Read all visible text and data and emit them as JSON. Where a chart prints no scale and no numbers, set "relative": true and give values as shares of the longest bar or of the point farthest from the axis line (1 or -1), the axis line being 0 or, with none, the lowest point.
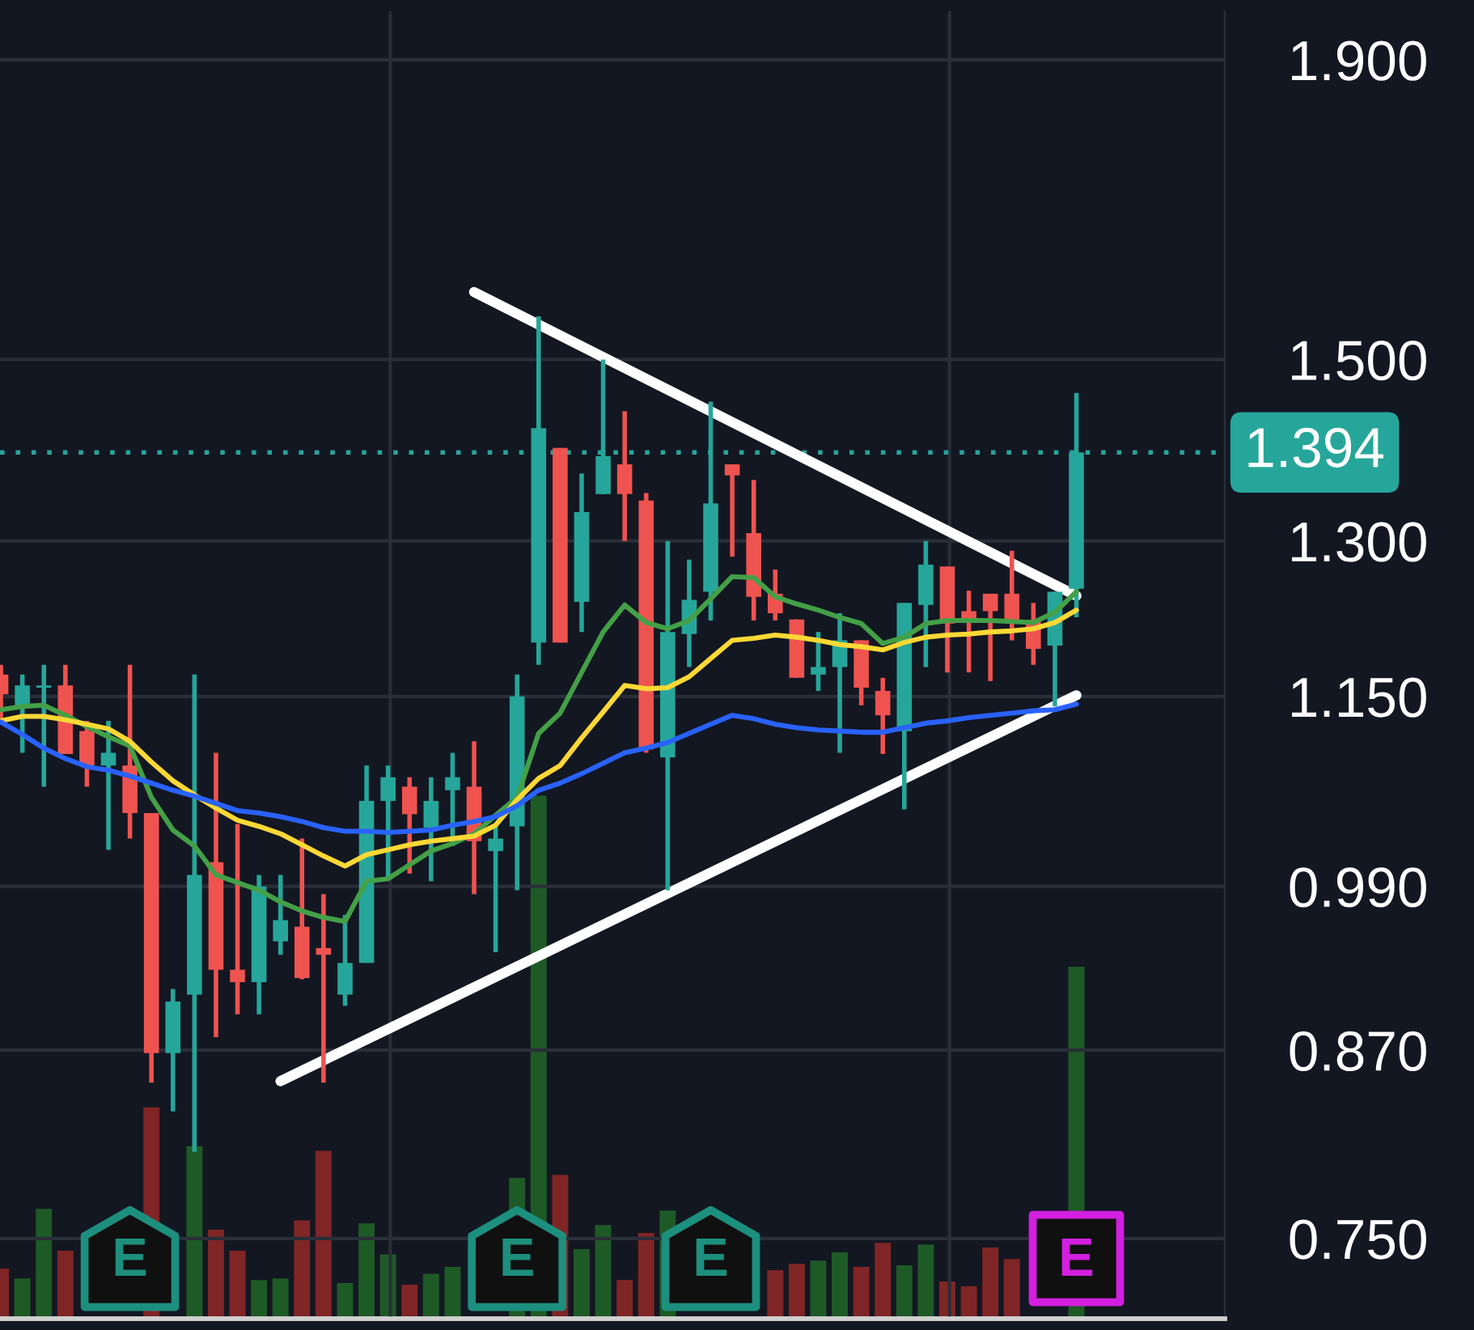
{
  "chart_data": [
    {
      "type": "candlestick",
      "log": true,
      "grid": "y",
      "tick_labels": "y",
      "categories": [
        null,
        null,
        null,
        null,
        null,
        null,
        null,
        null,
        null,
        null,
        null,
        null,
        null,
        null,
        null,
        null,
        null,
        null,
        null,
        null,
        null,
        null,
        null,
        null,
        null,
        null,
        null,
        null,
        null,
        null,
        null,
        null,
        null,
        null,
        null,
        null,
        null,
        null,
        null,
        null,
        null,
        null,
        null,
        null,
        null,
        null,
        null,
        null,
        null,
        null,
        null
      ],
      "ohlc": [
        [
          1.17,
          1.179,
          1.13,
          1.152
        ],
        [
          1.141,
          1.17,
          1.1,
          1.16
        ],
        [
          1.158,
          1.179,
          1.071,
          1.16
        ],
        [
          1.16,
          1.179,
          1.099,
          1.099
        ],
        [
          1.119,
          1.128,
          1.071,
          1.089
        ],
        [
          1.089,
          1.128,
          1.019,
          1.1
        ],
        [
          1.089,
          1.179,
          1.028,
          1.049
        ],
        [
          1.049,
          1.049,
          0.848,
          0.868
        ],
        [
          0.868,
          0.913,
          0.829,
          0.904
        ],
        [
          0.909,
          1.17,
          0.803,
          0.999
        ],
        [
          1.009,
          1.1,
          0.879,
          0.927
        ],
        [
          0.927,
          1.04,
          0.895,
          0.918
        ],
        [
          0.918,
          0.999,
          0.895,
          0.99
        ],
        [
          0.948,
          0.999,
          0.938,
          0.964
        ],
        [
          0.959,
          1.028,
          0.92,
          0.921
        ],
        [
          0.943,
          0.984,
          0.848,
          0.938
        ],
        [
          0.909,
          0.968,
          0.901,
          0.932
        ],
        [
          0.932,
          1.089,
          0.932,
          1.059
        ],
        [
          1.059,
          1.089,
          0.996,
          1.079
        ],
        [
          1.071,
          1.079,
          1.0,
          1.048
        ],
        [
          1.037,
          1.079,
          0.994,
          1.059
        ],
        [
          1.068,
          1.1,
          1.022,
          1.079
        ],
        [
          1.071,
          1.11,
          0.984,
          1.026
        ],
        [
          1.018,
          1.038,
          0.94,
          1.028
        ],
        [
          1.038,
          1.17,
          0.987,
          1.15
        ],
        [
          1.2,
          1.552,
          1.179,
          1.421
        ],
        [
          1.399,
          1.399,
          1.2,
          1.2
        ],
        [
          1.239,
          1.371,
          1.21,
          1.33
        ],
        [
          1.349,
          1.5,
          1.349,
          1.39
        ],
        [
          1.381,
          1.44,
          1.3,
          1.349
        ],
        [
          1.342,
          1.35,
          1.1,
          1.103
        ],
        [
          1.096,
          1.3,
          0.987,
          1.21
        ],
        [
          1.208,
          1.281,
          1.177,
          1.241
        ],
        [
          1.249,
          1.451,
          1.221,
          1.339
        ],
        [
          1.381,
          1.381,
          1.284,
          1.369
        ],
        [
          1.308,
          1.364,
          1.221,
          1.244
        ],
        [
          1.247,
          1.271,
          1.221,
          1.228
        ],
        [
          1.222,
          1.222,
          1.167,
          1.167
        ],
        [
          1.17,
          1.21,
          1.155,
          1.177
        ],
        [
          1.177,
          1.228,
          1.1,
          1.202
        ],
        [
          1.202,
          1.202,
          1.142,
          1.158
        ],
        [
          1.155,
          1.167,
          1.099,
          1.133
        ],
        [
          1.119,
          1.238,
          1.052,
          1.238
        ],
        [
          1.236,
          1.3,
          1.177,
          1.276
        ],
        [
          1.274,
          1.274,
          1.172,
          1.218
        ],
        [
          1.23,
          1.25,
          1.172,
          1.221
        ],
        [
          1.247,
          1.247,
          1.164,
          1.23
        ],
        [
          1.247,
          1.29,
          1.202,
          1.221
        ],
        [
          1.221,
          1.238,
          1.179,
          1.194
        ],
        [
          1.197,
          1.249,
          1.141,
          1.249
        ],
        [
          1.252,
          1.461,
          1.224,
          1.394
        ]
      ],
      "colors": [
        "#ef5350",
        "#26a69a",
        "#26a69a",
        "#ef5350",
        "#ef5350",
        "#26a69a",
        "#ef5350",
        "#ef5350",
        "#26a69a",
        "#26a69a",
        "#ef5350",
        "#ef5350",
        "#26a69a",
        "#26a69a",
        "#ef5350",
        "#ef5350",
        "#26a69a",
        "#26a69a",
        "#26a69a",
        "#ef5350",
        "#26a69a",
        "#26a69a",
        "#ef5350",
        "#26a69a",
        "#26a69a",
        "#26a69a",
        "#ef5350",
        "#26a69a",
        "#26a69a",
        "#ef5350",
        "#ef5350",
        "#26a69a",
        "#26a69a",
        "#26a69a",
        "#ef5350",
        "#ef5350",
        "#ef5350",
        "#ef5350",
        "#26a69a",
        "#26a69a",
        "#ef5350",
        "#ef5350",
        "#26a69a",
        "#26a69a",
        "#ef5350",
        "#ef5350",
        "#ef5350",
        "#ef5350",
        "#ef5350",
        "#26a69a",
        "#26a69a"
      ],
      "series": [
        {
          "type": "line",
          "color": "#43a047",
          "values": [
            1.138,
            1.141,
            1.142,
            1.133,
            1.123,
            1.114,
            1.106,
            1.062,
            1.035,
            1.022,
            0.999,
            0.993,
            0.987,
            0.978,
            0.971,
            0.966,
            0.963,
            0.994,
            0.996,
            1.007,
            1.018,
            1.024,
            1.032,
            1.047,
            1.062,
            1.117,
            1.135,
            1.172,
            1.21,
            1.236,
            1.219,
            1.213,
            1.221,
            1.242,
            1.264,
            1.263,
            1.244,
            1.237,
            1.231,
            1.224,
            1.218,
            1.199,
            1.205,
            1.218,
            1.221,
            1.221,
            1.221,
            1.22,
            1.219,
            1.229,
            1.249
          ]
        },
        {
          "type": "line",
          "color": "#fdd835",
          "values": [
            1.128,
            1.132,
            1.132,
            1.129,
            1.125,
            1.121,
            1.11,
            1.092,
            1.076,
            1.064,
            1.053,
            1.043,
            1.038,
            1.032,
            1.023,
            1.014,
            1.006,
            1.015,
            1.019,
            1.023,
            1.026,
            1.028,
            1.03,
            1.039,
            1.06,
            1.078,
            1.089,
            1.113,
            1.136,
            1.16,
            1.157,
            1.158,
            1.168,
            1.185,
            1.202,
            1.204,
            1.207,
            1.205,
            1.202,
            1.198,
            1.196,
            1.193,
            1.2,
            1.205,
            1.207,
            1.208,
            1.21,
            1.211,
            1.213,
            1.219,
            1.231
          ]
        },
        {
          "type": "line",
          "color": "#2962ff",
          "values": [
            1.127,
            1.116,
            1.104,
            1.095,
            1.088,
            1.085,
            1.08,
            1.074,
            1.068,
            1.063,
            1.057,
            1.051,
            1.049,
            1.046,
            1.042,
            1.037,
            1.034,
            1.034,
            1.033,
            1.034,
            1.035,
            1.039,
            1.042,
            1.046,
            1.055,
            1.068,
            1.074,
            1.082,
            1.091,
            1.1,
            1.104,
            1.109,
            1.117,
            1.125,
            1.133,
            1.13,
            1.125,
            1.122,
            1.12,
            1.119,
            1.118,
            1.118,
            1.122,
            1.126,
            1.128,
            1.131,
            1.133,
            1.135,
            1.137,
            1.138,
            1.143
          ]
        },
        {
          "type": "line",
          "color": "#ffffff",
          "values": [
            null,
            null,
            null,
            null,
            null,
            null,
            null,
            null,
            null,
            null,
            null,
            null,
            null,
            null,
            null,
            null,
            null,
            null,
            null,
            null,
            null,
            null,
            1.582,
            null,
            null,
            null,
            null,
            null,
            null,
            null,
            null,
            null,
            null,
            null,
            null,
            null,
            null,
            null,
            null,
            null,
            null,
            null,
            null,
            null,
            null,
            null,
            null,
            null,
            null,
            null,
            1.245
          ]
        },
        {
          "type": "line",
          "color": "#ffffff",
          "values": [
            null,
            null,
            null,
            null,
            null,
            null,
            null,
            null,
            null,
            null,
            null,
            null,
            null,
            0.849,
            null,
            null,
            null,
            null,
            null,
            null,
            null,
            null,
            null,
            null,
            null,
            null,
            null,
            null,
            null,
            null,
            null,
            null,
            null,
            null,
            null,
            null,
            null,
            null,
            null,
            null,
            null,
            null,
            null,
            null,
            null,
            null,
            null,
            null,
            null,
            null,
            1.151
          ]
        }
      ],
      "ylim": [
        0.704,
        1.974
      ],
      "yticks": [
        {
          "value": 0.75,
          "label": "0.750"
        },
        {
          "value": 0.87,
          "label": "0.870"
        },
        {
          "value": 0.99,
          "label": "0.990"
        },
        {
          "value": 1.15,
          "label": "1.150"
        },
        {
          "value": 1.3,
          "label": "1.300"
        },
        {
          "value": 1.5,
          "label": "1.500"
        },
        {
          "value": 1.9,
          "label": "1.900"
        }
      ],
      "ref_lines": [
        {
          "axis": "y",
          "value": 1.394,
          "label": "1.394",
          "color": "#26a69a",
          "line_style": "dotted"
        }
      ],
      "annotations": [
        "E",
        "E",
        "E",
        "E"
      ]
    },
    {
      "type": "bar",
      "relative": true,
      "tick_labels": false,
      "categories": [
        null,
        null,
        null,
        null,
        null,
        null,
        null,
        null,
        null,
        null,
        null,
        null,
        null,
        null,
        null,
        null,
        null,
        null,
        null,
        null,
        null,
        null,
        null,
        null,
        null,
        null,
        null,
        null,
        null,
        null,
        null,
        null,
        null,
        null,
        null,
        null,
        null,
        null,
        null,
        null,
        null,
        null,
        null,
        null,
        null,
        null,
        null,
        null,
        null,
        null,
        null
      ],
      "values": [
        0.096,
        0.077,
        0.21,
        0.13,
        null,
        null,
        null,
        0.404,
        null,
        0.33,
        0.17,
        0.13,
        0.074,
        0.077,
        0.188,
        0.321,
        0.068,
        0.182,
        0.123,
        0.065,
        0.086,
        0.099,
        null,
        null,
        0.269,
        1,
        0.275,
        0.133,
        0.179,
        0.074,
        0.164,
        0.207,
        null,
        null,
        null,
        null,
        0.093,
        0.105,
        0.111,
        0.127,
        0.099,
        0.145,
        0.102,
        0.142,
        0.071,
        0.062,
        0.136,
        0.114,
        null,
        null,
        0.673
      ],
      "colors": [
        "#7f2525",
        "#1e5a26",
        "#1e5a26",
        "#7f2525",
        "#7f2525",
        "#1e5a26",
        "#7f2525",
        "#7f2525",
        "#1e5a26",
        "#1e5a26",
        "#7f2525",
        "#7f2525",
        "#1e5a26",
        "#1e5a26",
        "#7f2525",
        "#7f2525",
        "#1e5a26",
        "#1e5a26",
        "#1e5a26",
        "#7f2525",
        "#1e5a26",
        "#1e5a26",
        "#7f2525",
        "#1e5a26",
        "#1e5a26",
        "#1e5a26",
        "#7f2525",
        "#1e5a26",
        "#1e5a26",
        "#7f2525",
        "#7f2525",
        "#1e5a26",
        "#1e5a26",
        "#1e5a26",
        "#7f2525",
        "#7f2525",
        "#7f2525",
        "#7f2525",
        "#1e5a26",
        "#1e5a26",
        "#7f2525",
        "#7f2525",
        "#1e5a26",
        "#1e5a26",
        "#7f2525",
        "#7f2525",
        "#7f2525",
        "#7f2525",
        "#7f2525",
        "#1e5a26",
        "#1e5a26"
      ]
    }
  ]
}
